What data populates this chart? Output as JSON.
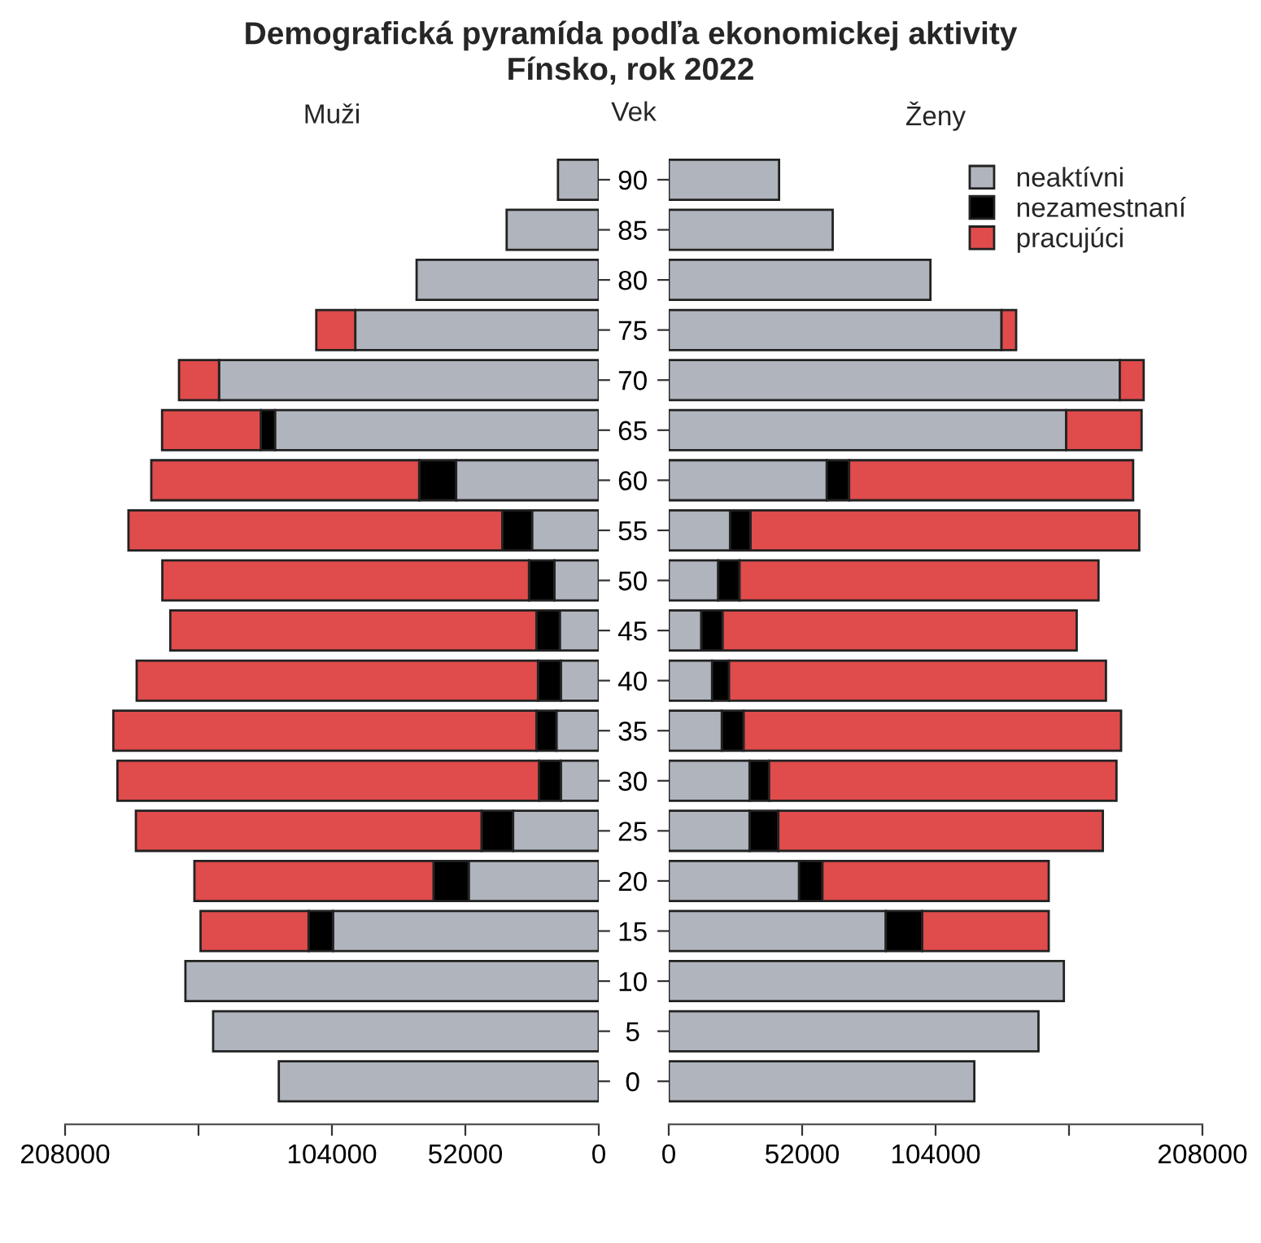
{
  "chart_data": [
    {
      "type": "bar",
      "orientation": "horizontal",
      "stacked": true,
      "title": "Demografická pyramída podľa ekonomickej aktivity",
      "subtitle": "Fínsko, rok 2022",
      "ylabel": "Vek",
      "annotations": [
        "Muži"
      ],
      "categories": [
        "90",
        "85",
        "80",
        "75",
        "70",
        "65",
        "60",
        "55",
        "50",
        "45",
        "40",
        "35",
        "30",
        "25",
        "20",
        "15",
        "10",
        "5",
        "0"
      ],
      "xlim": [
        208000,
        0
      ],
      "xticks": [
        208000,
        {
          "value": 156000,
          "label": null
        },
        104000,
        52000,
        0
      ],
      "grid": false,
      "series": [
        {
          "color": "#b0b5bd",
          "values": [
            15900,
            35900,
            71000,
            94900,
            148000,
            126200,
            55600,
            26000,
            17300,
            15200,
            14800,
            16500,
            14800,
            33400,
            50700,
            103600,
            161100,
            150300,
            124700
          ]
        },
        {
          "color": "#000000",
          "values": [
            null,
            null,
            null,
            null,
            null,
            5500,
            14400,
            11600,
            9900,
            9100,
            8900,
            7800,
            8500,
            12300,
            13700,
            9500,
            null,
            null,
            null
          ]
        },
        {
          "color": "#e04b4b",
          "values": [
            null,
            null,
            null,
            15200,
            15600,
            38500,
            104400,
            145700,
            142900,
            142700,
            156400,
            164900,
            164300,
            134700,
            93200,
            42100,
            null,
            null,
            null
          ]
        }
      ]
    },
    {
      "type": "bar",
      "orientation": "horizontal",
      "stacked": true,
      "annotations": [
        "Ženy"
      ],
      "tick_labels": "x",
      "categories": [
        "90",
        "85",
        "80",
        "75",
        "70",
        "65",
        "60",
        "55",
        "50",
        "45",
        "40",
        "35",
        "30",
        "25",
        "20",
        "15",
        "10",
        "5",
        "0"
      ],
      "xlim": [
        0,
        208000
      ],
      "xticks": [
        0,
        52000,
        104000,
        {
          "value": 156000,
          "label": null
        },
        208000
      ],
      "grid": false,
      "legend": "top right",
      "series": [
        {
          "name": "neaktívni",
          "color": "#b0b5bd",
          "values": [
            43000,
            63900,
            102000,
            129700,
            175800,
            154900,
            61600,
            23900,
            19300,
            12700,
            16900,
            20700,
            31500,
            31500,
            50800,
            84600,
            154000,
            144100,
            119100
          ]
        },
        {
          "name": "nezamestnaní",
          "color": "#000000",
          "values": [
            null,
            null,
            null,
            null,
            null,
            null,
            8700,
            8000,
            8300,
            8300,
            6600,
            8500,
            7600,
            11200,
            9100,
            14200,
            null,
            null,
            null
          ]
        },
        {
          "name": "pracujúci",
          "color": "#e04b4b",
          "values": [
            null,
            null,
            null,
            5700,
            9300,
            29400,
            110700,
            151500,
            139900,
            138000,
            146900,
            147100,
            135400,
            126500,
            88200,
            49300,
            null,
            null,
            null
          ]
        }
      ]
    }
  ]
}
